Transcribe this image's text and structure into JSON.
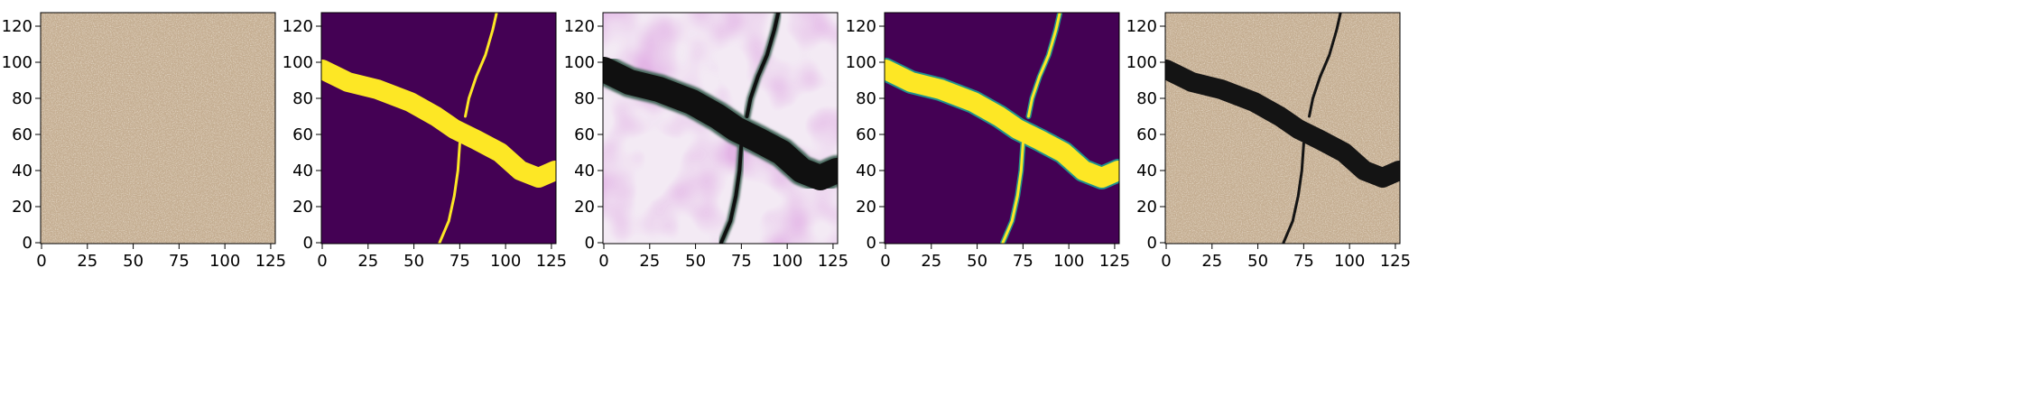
{
  "figure": {
    "panel_count": 5,
    "x_tick_labels": [
      "0",
      "25",
      "50",
      "75",
      "100",
      "125"
    ],
    "y_tick_labels": [
      "0",
      "20",
      "40",
      "60",
      "80",
      "100",
      "120"
    ]
  },
  "chart_data": {
    "type": "image-grid",
    "xlim": [
      -0.5,
      127.5
    ],
    "ylim": [
      127.5,
      -0.5
    ],
    "x_ticks": [
      0,
      25,
      50,
      75,
      100,
      125
    ],
    "y_ticks": [
      0,
      20,
      40,
      60,
      80,
      100,
      120
    ],
    "panels": [
      {
        "content": "sand-texture"
      },
      {
        "content": "crack-mask",
        "colors": {
          "background": "#440154",
          "foreground": "#fde725"
        }
      },
      {
        "content": "generated-crack"
      },
      {
        "content": "predicted-mask",
        "colors": {
          "background": "#440154",
          "foreground": "#fde725"
        }
      },
      {
        "content": "crack-on-sand"
      }
    ],
    "crack_main_polyline": [
      [
        0,
        96
      ],
      [
        14,
        89
      ],
      [
        30,
        85
      ],
      [
        48,
        78
      ],
      [
        62,
        70
      ],
      [
        72,
        63
      ],
      [
        84,
        57
      ],
      [
        97,
        50
      ],
      [
        108,
        40
      ],
      [
        118,
        36
      ],
      [
        127,
        40
      ]
    ],
    "crack_branch_top": [
      [
        64,
        0
      ],
      [
        69,
        12
      ],
      [
        72,
        26
      ],
      [
        74,
        40
      ],
      [
        75,
        55
      ]
    ],
    "crack_branch_bottom": [
      [
        78,
        70
      ],
      [
        80,
        80
      ],
      [
        84,
        92
      ],
      [
        89,
        104
      ],
      [
        93,
        118
      ],
      [
        95,
        127
      ]
    ]
  }
}
